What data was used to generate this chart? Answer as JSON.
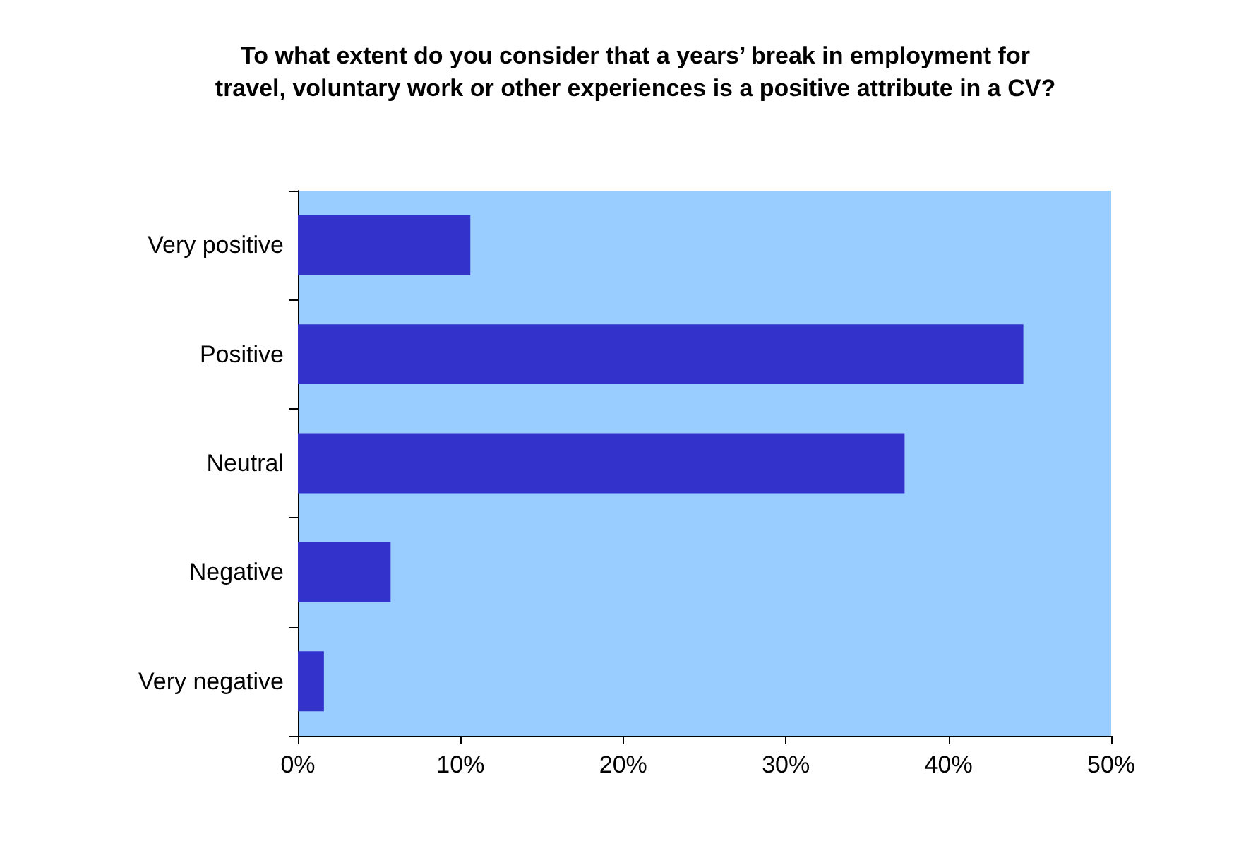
{
  "chart_data": {
    "type": "bar",
    "orientation": "horizontal",
    "title": "To what extent do you consider that a years’ break in employment for travel, voluntary work or other experiences is a positive attribute in a CV?",
    "categories": [
      "Very positive",
      "Positive",
      "Neutral",
      "Negative",
      "Very negative"
    ],
    "values": [
      10.6,
      44.6,
      37.3,
      5.7,
      1.6
    ],
    "color": "#3333cc",
    "xlim": [
      0,
      50
    ],
    "xticks": [
      {
        "value": 0,
        "label": "0%"
      },
      {
        "value": 10,
        "label": "10%"
      },
      {
        "value": 20,
        "label": "20%"
      },
      {
        "value": 30,
        "label": "30%"
      },
      {
        "value": 40,
        "label": "40%"
      },
      {
        "value": 50,
        "label": "50%"
      }
    ],
    "grid": false
  }
}
